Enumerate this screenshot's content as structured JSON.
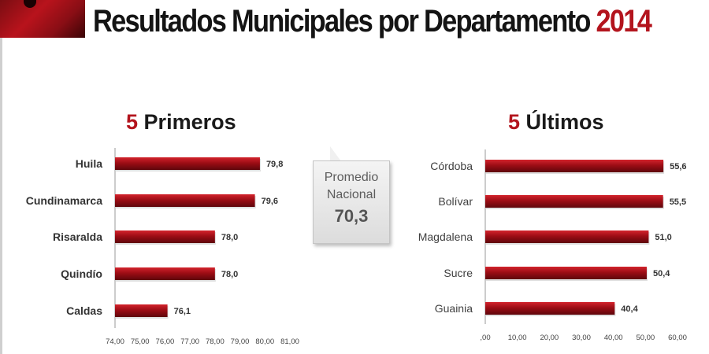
{
  "header": {
    "title": "Resultados Municipales por Departamento",
    "year": "2014"
  },
  "callout": {
    "line1": "Promedio",
    "line2": "Nacional",
    "value": "70,3"
  },
  "colors": {
    "accent": "#b3141d",
    "bar": "#9c0d15"
  },
  "chart_data": [
    {
      "type": "bar",
      "orientation": "horizontal",
      "title_number": "5",
      "title_text": "Primeros",
      "categories": [
        "Huila",
        "Cundinamarca",
        "Risaralda",
        "Quindío",
        "Caldas"
      ],
      "values": [
        79.8,
        79.6,
        78.0,
        78.0,
        76.1
      ],
      "value_labels": [
        "79,8",
        "79,6",
        "78,0",
        "78,0",
        "76,1"
      ],
      "xlim": [
        74,
        81
      ],
      "ticks": [
        74,
        75,
        76,
        77,
        78,
        79,
        80,
        81
      ],
      "tick_labels": [
        "74,00",
        "75,00",
        "76,00",
        "77,00",
        "78,00",
        "79,00",
        "80,00",
        "81,00"
      ],
      "grid": false
    },
    {
      "type": "bar",
      "orientation": "horizontal",
      "title_number": "5",
      "title_text": "Últimos",
      "categories": [
        "Córdoba",
        "Bolívar",
        "Magdalena",
        "Sucre",
        "Guainia"
      ],
      "values": [
        55.6,
        55.5,
        51.0,
        50.4,
        40.4
      ],
      "value_labels": [
        "55,6",
        "55,5",
        "51,0",
        "50,4",
        "40,4"
      ],
      "xlim": [
        0,
        60
      ],
      "ticks": [
        0,
        10,
        20,
        30,
        40,
        50,
        60
      ],
      "tick_labels": [
        ",00",
        "10,00",
        "20,00",
        "30,00",
        "40,00",
        "50,00",
        "60,00"
      ],
      "grid": false
    }
  ]
}
